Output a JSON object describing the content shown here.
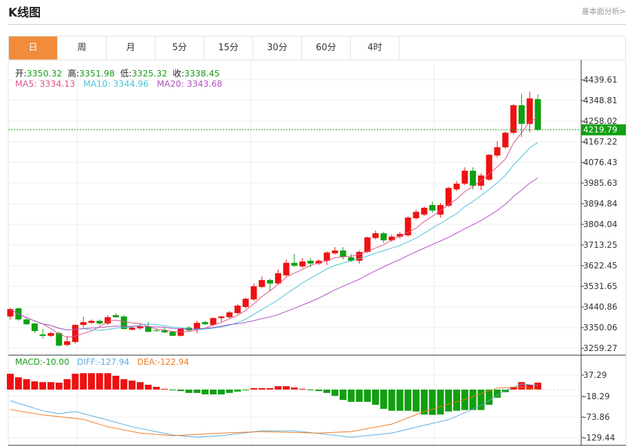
{
  "header": {
    "title": "K线图",
    "link": "基本面分析>"
  },
  "tabs": [
    {
      "label": "日",
      "active": true
    },
    {
      "label": "周"
    },
    {
      "label": "月"
    },
    {
      "label": "5分"
    },
    {
      "label": "15分"
    },
    {
      "label": "30分"
    },
    {
      "label": "60分"
    },
    {
      "label": "4时"
    }
  ],
  "ohlc": {
    "open_label": "开:",
    "open": "3350.32",
    "high_label": "高:",
    "high": "3351.98",
    "low_label": "低:",
    "low": "3325.32",
    "close_label": "收:",
    "close": "3338.45"
  },
  "ma": {
    "ma5": "MA5: 3334.13",
    "ma10": "MA10: 3344.96",
    "ma20": "MA20: 3343.68"
  },
  "macd_legend": {
    "macd": "MACD:-10.00",
    "diff": "DIFF:-127.94",
    "dea": "DEA:-122.94"
  },
  "colors": {
    "up": "#ee1111",
    "down": "#11a011",
    "ma5": "#e0508a",
    "ma10": "#4ac0d8",
    "ma20": "#b050c0",
    "diff": "#5aaae0",
    "dea": "#f07a20",
    "accent": "#f08c3c"
  },
  "chart_data": [
    {
      "type": "candlestick",
      "ylim": [
        3259.27,
        4439.61
      ],
      "yticks": [
        "4439.61",
        "4348.81",
        "4258.02",
        "4167.22",
        "4076.43",
        "3985.63",
        "3894.84",
        "3804.04",
        "3713.25",
        "3622.45",
        "3531.65",
        "3440.86",
        "3350.06",
        "3259.27"
      ],
      "last_price": "4219.79",
      "candles": [
        [
          3399,
          3438,
          3386,
          3432
        ],
        [
          3435,
          3438,
          3380,
          3386
        ],
        [
          3386,
          3392,
          3362,
          3365
        ],
        [
          3368,
          3371,
          3326,
          3335
        ],
        [
          3320,
          3344,
          3302,
          3314
        ],
        [
          3314,
          3332,
          3308,
          3326
        ],
        [
          3326,
          3332,
          3268,
          3271
        ],
        [
          3274,
          3314,
          3268,
          3290
        ],
        [
          3287,
          3365,
          3281,
          3362
        ],
        [
          3362,
          3398,
          3350,
          3374
        ],
        [
          3371,
          3386,
          3365,
          3380
        ],
        [
          3380,
          3386,
          3362,
          3368
        ],
        [
          3368,
          3405,
          3362,
          3396
        ],
        [
          3405,
          3414,
          3393,
          3396
        ],
        [
          3399,
          3405,
          3341,
          3344
        ],
        [
          3341,
          3356,
          3338,
          3350
        ],
        [
          3347,
          3368,
          3341,
          3356
        ],
        [
          3356,
          3374,
          3329,
          3332
        ],
        [
          3338,
          3347,
          3332,
          3335
        ],
        [
          3338,
          3350,
          3326,
          3329
        ],
        [
          3332,
          3335,
          3314,
          3314
        ],
        [
          3314,
          3347,
          3311,
          3347
        ],
        [
          3350,
          3356,
          3332,
          3338
        ],
        [
          3341,
          3380,
          3326,
          3371
        ],
        [
          3374,
          3380,
          3362,
          3365
        ],
        [
          3362,
          3396,
          3356,
          3392
        ],
        [
          3392,
          3402,
          3374,
          3399
        ],
        [
          3396,
          3423,
          3390,
          3417
        ],
        [
          3414,
          3453,
          3408,
          3447
        ],
        [
          3441,
          3483,
          3435,
          3477
        ],
        [
          3474,
          3544,
          3468,
          3532
        ],
        [
          3529,
          3575,
          3523,
          3559
        ],
        [
          3559,
          3565,
          3510,
          3544
        ],
        [
          3544,
          3605,
          3538,
          3589
        ],
        [
          3580,
          3650,
          3574,
          3635
        ],
        [
          3635,
          3674,
          3616,
          3622
        ],
        [
          3619,
          3656,
          3613,
          3641
        ],
        [
          3644,
          3656,
          3616,
          3632
        ],
        [
          3632,
          3650,
          3626,
          3644
        ],
        [
          3644,
          3686,
          3626,
          3680
        ],
        [
          3677,
          3704,
          3671,
          3689
        ],
        [
          3689,
          3704,
          3650,
          3662
        ],
        [
          3659,
          3674,
          3638,
          3644
        ],
        [
          3644,
          3689,
          3632,
          3683
        ],
        [
          3683,
          3750,
          3677,
          3747
        ],
        [
          3744,
          3777,
          3738,
          3765
        ],
        [
          3765,
          3771,
          3722,
          3734
        ],
        [
          3734,
          3759,
          3728,
          3750
        ],
        [
          3750,
          3771,
          3741,
          3762
        ],
        [
          3756,
          3840,
          3750,
          3834
        ],
        [
          3831,
          3868,
          3825,
          3859
        ],
        [
          3847,
          3883,
          3840,
          3877
        ],
        [
          3889,
          3905,
          3855,
          3865
        ],
        [
          3847,
          3898,
          3834,
          3889
        ],
        [
          3886,
          3970,
          3880,
          3964
        ],
        [
          3958,
          3995,
          3950,
          3983
        ],
        [
          3983,
          4055,
          3977,
          4040
        ],
        [
          4040,
          4055,
          3958,
          3974
        ],
        [
          3974,
          4028,
          3955,
          4019
        ],
        [
          4001,
          4113,
          3995,
          4110
        ],
        [
          4107,
          4170,
          4098,
          4143
        ],
        [
          4143,
          4213,
          4137,
          4207
        ],
        [
          4207,
          4334,
          4200,
          4328
        ],
        [
          4328,
          4379,
          4188,
          4246
        ],
        [
          4246,
          4388,
          4210,
          4358
        ],
        [
          4355,
          4376,
          4215,
          4220
        ]
      ]
    },
    {
      "type": "macd",
      "yticks": [
        "37.29",
        "-18.29",
        "-73.86",
        "-129.44"
      ],
      "hist": [
        42.5,
        33,
        28,
        22,
        20,
        20,
        18.5,
        28,
        42.5,
        44,
        44,
        44,
        44,
        37,
        28,
        24,
        20,
        13,
        7.4,
        2,
        -2,
        -4,
        -9,
        -9,
        -13,
        -13,
        -13,
        -9,
        -5.5,
        -2,
        3.7,
        3.7,
        3.7,
        9,
        9,
        5.5,
        2,
        -2,
        -4,
        -9,
        -17,
        -28,
        -33,
        -33,
        -33,
        -41,
        -52,
        -57,
        -57,
        -57,
        -59,
        -67,
        -68,
        -67,
        -59,
        -57,
        -55,
        -55,
        -55,
        -41,
        -22,
        -7,
        7.4,
        20,
        13,
        18.5
      ],
      "diff": [
        [
          0,
          -30
        ],
        [
          4,
          -57
        ],
        [
          6,
          -65
        ],
        [
          8,
          -59
        ],
        [
          11,
          -76
        ],
        [
          15,
          -100
        ],
        [
          20,
          -122
        ],
        [
          23,
          -128
        ],
        [
          26,
          -124
        ],
        [
          31,
          -111
        ],
        [
          35,
          -111
        ],
        [
          38,
          -118
        ],
        [
          42,
          -128
        ],
        [
          47,
          -117
        ],
        [
          51,
          -96
        ],
        [
          54,
          -81
        ],
        [
          58,
          -43
        ],
        [
          61,
          -2
        ],
        [
          63,
          15
        ],
        [
          65,
          11
        ]
      ],
      "dea": [
        [
          0,
          -54
        ],
        [
          4,
          -68
        ],
        [
          9,
          -80
        ],
        [
          12,
          -100
        ],
        [
          16,
          -117
        ],
        [
          20,
          -124
        ],
        [
          26,
          -117
        ],
        [
          31,
          -113
        ],
        [
          38,
          -117
        ],
        [
          42,
          -113
        ],
        [
          47,
          -93
        ],
        [
          51,
          -59
        ],
        [
          56,
          -26
        ],
        [
          60,
          4
        ],
        [
          63,
          7
        ],
        [
          65,
          0
        ]
      ]
    }
  ]
}
